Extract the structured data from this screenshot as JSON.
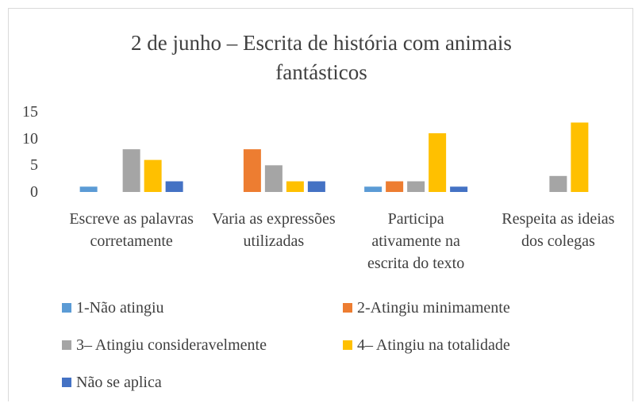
{
  "chart_data": {
    "type": "bar",
    "title": "2 de junho – Escrita de história com animais fantásticos",
    "categories": [
      "Escreve as palavras corretamente",
      "Varia as expressões utilizadas",
      "Participa ativamente na escrita do texto",
      "Respeita as ideias dos colegas"
    ],
    "series": [
      {
        "name": "1-Não atingiu",
        "color": "#5b9bd5",
        "values": [
          1,
          0,
          1,
          0
        ]
      },
      {
        "name": "2-Atingiu minimamente",
        "color": "#ed7d31",
        "values": [
          0,
          8,
          2,
          0
        ]
      },
      {
        "name": "3– Atingiu consideravelmente",
        "color": "#a5a5a5",
        "values": [
          8,
          5,
          2,
          3
        ]
      },
      {
        "name": "4– Atingiu na totalidade",
        "color": "#ffc000",
        "values": [
          6,
          2,
          11,
          13
        ]
      },
      {
        "name": "Não se aplica",
        "color": "#4472c4",
        "values": [
          2,
          2,
          1,
          0
        ]
      }
    ],
    "ylim": [
      0,
      15
    ],
    "yticks": [
      0,
      5,
      10,
      15
    ],
    "grid": false
  }
}
